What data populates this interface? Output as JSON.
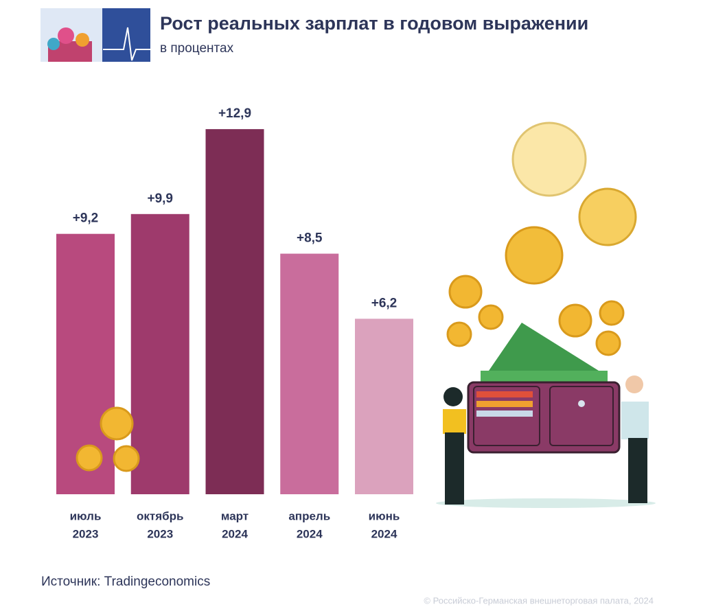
{
  "chart_data": {
    "type": "bar",
    "title": "Рост реальных зарплат в годовом выражении",
    "subtitle": "в процентах",
    "categories": [
      [
        "июль",
        "2023"
      ],
      [
        "октябрь",
        "2023"
      ],
      [
        "март",
        "2024"
      ],
      [
        "апрель",
        "2024"
      ],
      [
        "июнь",
        "2024"
      ]
    ],
    "values": [
      9.2,
      9.9,
      12.9,
      8.5,
      6.2
    ],
    "value_labels": [
      "+9,2",
      "+9,9",
      "+12,9",
      "+8,5",
      "+6,2"
    ],
    "colors": [
      "#b84a7e",
      "#9e3a6c",
      "#7d2d55",
      "#c96d9c",
      "#dba2bd"
    ],
    "ylim": [
      0,
      13
    ],
    "source": "Источник: Tradingeconomics",
    "copyright": "© Российско-Германская внешнеторговая палата, 2024"
  }
}
